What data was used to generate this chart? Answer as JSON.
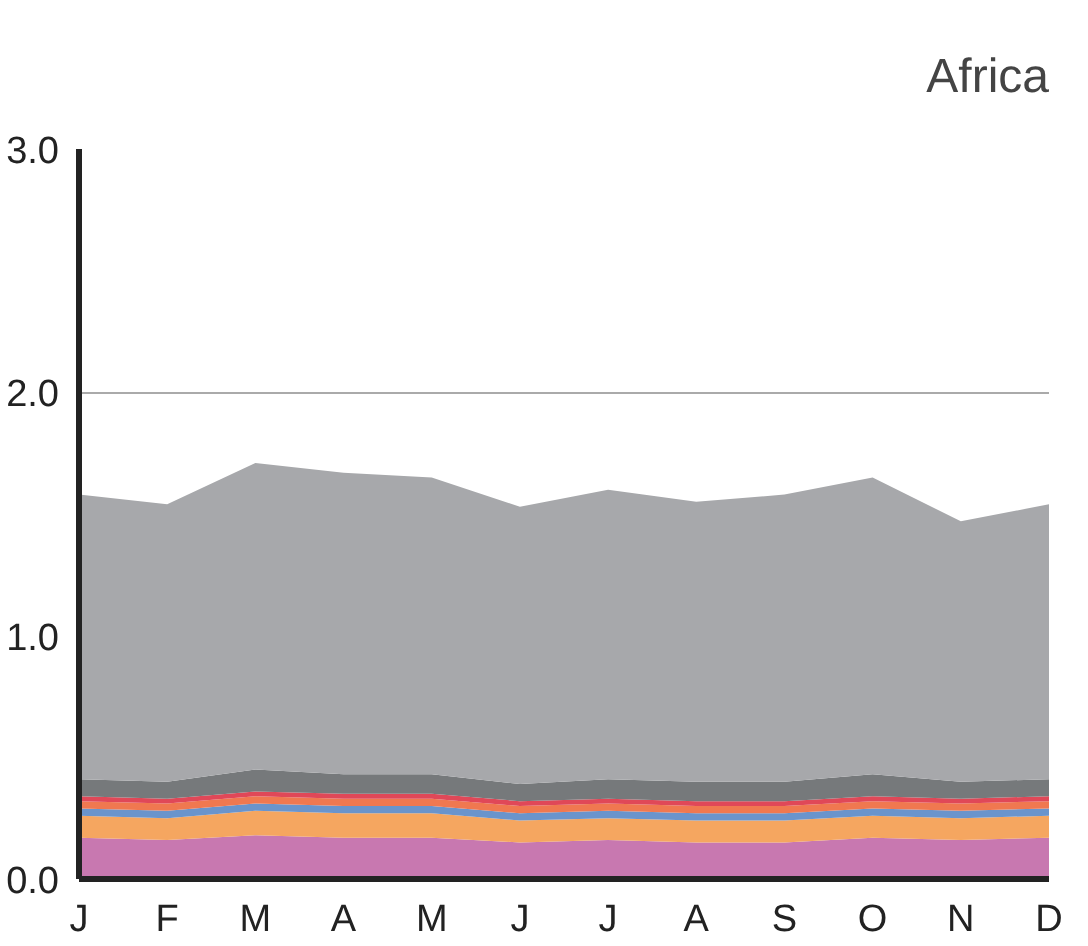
{
  "chart_data": {
    "type": "area",
    "stacked": true,
    "title": "Africa",
    "categories": [
      "J",
      "F",
      "M",
      "A",
      "M",
      "J",
      "J",
      "A",
      "S",
      "O",
      "N",
      "D"
    ],
    "series": [
      {
        "color": "#c878b0",
        "values": [
          0.17,
          0.16,
          0.18,
          0.17,
          0.17,
          0.15,
          0.16,
          0.15,
          0.15,
          0.17,
          0.16,
          0.17
        ]
      },
      {
        "color": "#f5a660",
        "values": [
          0.09,
          0.09,
          0.1,
          0.1,
          0.1,
          0.09,
          0.09,
          0.09,
          0.09,
          0.09,
          0.09,
          0.09
        ]
      },
      {
        "color": "#6a94cc",
        "values": [
          0.03,
          0.03,
          0.03,
          0.03,
          0.03,
          0.03,
          0.03,
          0.03,
          0.03,
          0.03,
          0.03,
          0.03
        ]
      },
      {
        "color": "#f07850",
        "values": [
          0.03,
          0.03,
          0.03,
          0.03,
          0.03,
          0.03,
          0.03,
          0.03,
          0.03,
          0.03,
          0.03,
          0.03
        ]
      },
      {
        "color": "#e04858",
        "values": [
          0.02,
          0.02,
          0.02,
          0.02,
          0.02,
          0.02,
          0.02,
          0.02,
          0.02,
          0.02,
          0.02,
          0.02
        ]
      },
      {
        "color": "#76797b",
        "values": [
          0.07,
          0.07,
          0.09,
          0.08,
          0.08,
          0.07,
          0.08,
          0.08,
          0.08,
          0.09,
          0.07,
          0.07
        ]
      },
      {
        "color": "#a7a8ab",
        "values": [
          1.17,
          1.14,
          1.26,
          1.24,
          1.22,
          1.14,
          1.19,
          1.15,
          1.18,
          1.22,
          1.07,
          1.13
        ]
      }
    ],
    "ylim": [
      0,
      3.0
    ],
    "yticks": [
      {
        "value": 0,
        "label": "0.0"
      },
      {
        "value": 1,
        "label": "1.0"
      },
      {
        "value": 2,
        "label": "2.0"
      },
      {
        "value": 3,
        "label": "3.0"
      }
    ],
    "grid": "y"
  }
}
